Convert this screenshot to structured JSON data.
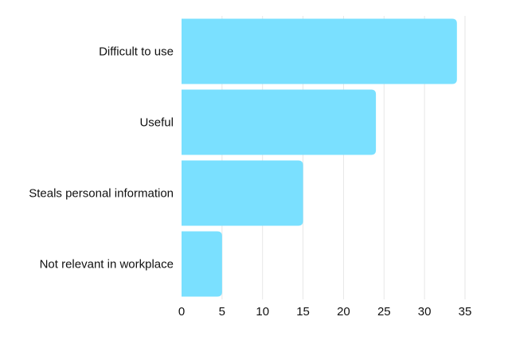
{
  "chart_data": {
    "type": "bar",
    "orientation": "horizontal",
    "categories": [
      "Difficult to use",
      "Useful",
      "Steals personal information",
      "Not relevant in workplace"
    ],
    "values": [
      34,
      24,
      15,
      5
    ],
    "xlim": [
      0,
      35
    ],
    "xticks": [
      "0",
      "5",
      "10",
      "15",
      "20",
      "25",
      "30",
      "35"
    ],
    "grid": true,
    "legend": "none",
    "title": "",
    "xlabel": "",
    "ylabel": ""
  },
  "colors": {
    "bar": "#7ae0ff",
    "grid": "#e6e6e6",
    "text": "#111111"
  }
}
